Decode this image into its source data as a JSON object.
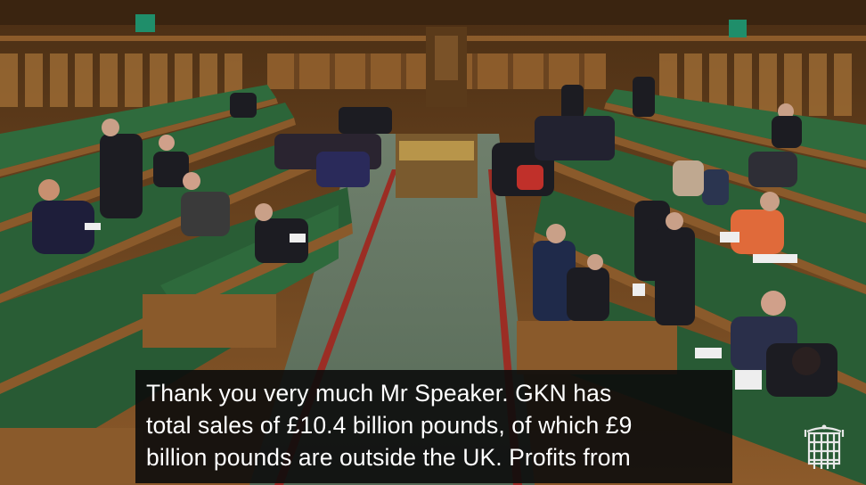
{
  "scene": {
    "description_icon": "house-of-commons-chamber-image",
    "colors": {
      "bench_green": "#2f6b3d",
      "wood": "#8a5a2b",
      "floor": "#5f7564",
      "red_line": "#9b2d24"
    }
  },
  "caption": {
    "lines": [
      "Thank you very much Mr Speaker. GKN has",
      "total sales of £10.4 billion pounds, of which £9",
      "billion pounds are outside the UK. Profits from"
    ]
  },
  "logo": {
    "icon": "portcullis-icon"
  }
}
